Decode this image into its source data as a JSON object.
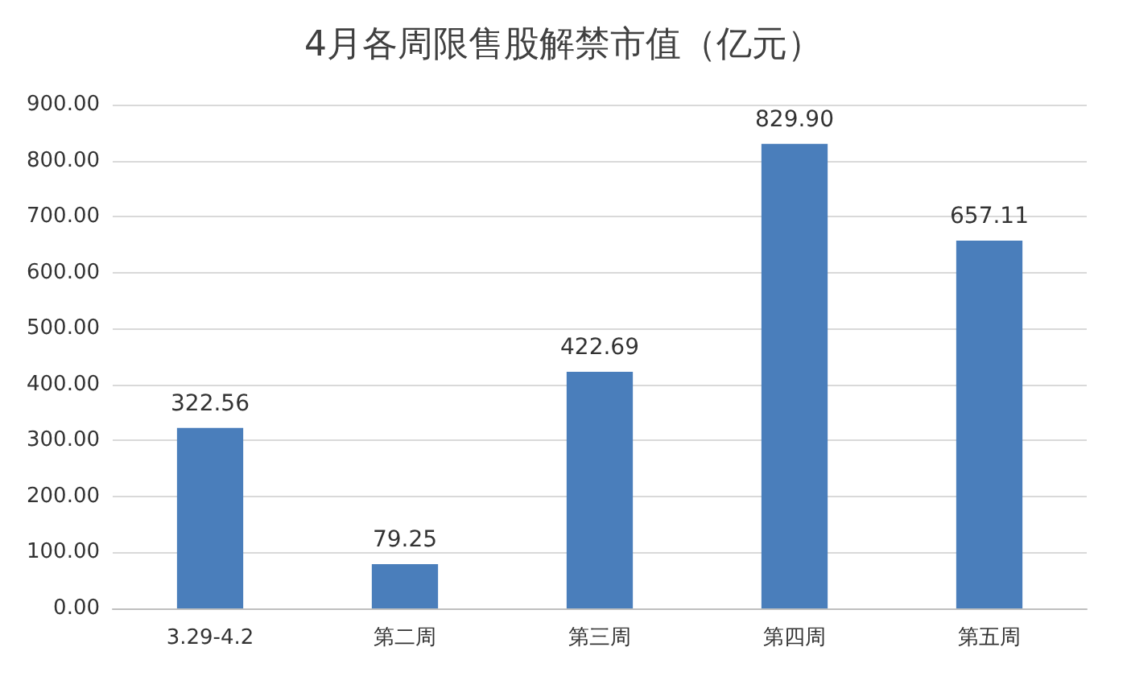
{
  "chart_data": {
    "type": "bar",
    "title": "4月各周限售股解禁市值（亿元）",
    "categories": [
      "3.29-4.2",
      "第二周",
      "第三周",
      "第四周",
      "第五周"
    ],
    "values": [
      322.56,
      79.25,
      422.69,
      829.9,
      657.11
    ],
    "value_labels": [
      "322.56",
      "79.25",
      "422.69",
      "829.90",
      "657.11"
    ],
    "color": "#4a7ebb",
    "ylim": [
      0,
      900
    ],
    "yticks": [
      {
        "value": 0,
        "label": "0.00"
      },
      {
        "value": 100,
        "label": "100.00"
      },
      {
        "value": 200,
        "label": "200.00"
      },
      {
        "value": 300,
        "label": "300.00"
      },
      {
        "value": 400,
        "label": "400.00"
      },
      {
        "value": 500,
        "label": "500.00"
      },
      {
        "value": 600,
        "label": "600.00"
      },
      {
        "value": 700,
        "label": "700.00"
      },
      {
        "value": 800,
        "label": "800.00"
      },
      {
        "value": 900,
        "label": "900.00"
      }
    ],
    "grid": "y"
  }
}
